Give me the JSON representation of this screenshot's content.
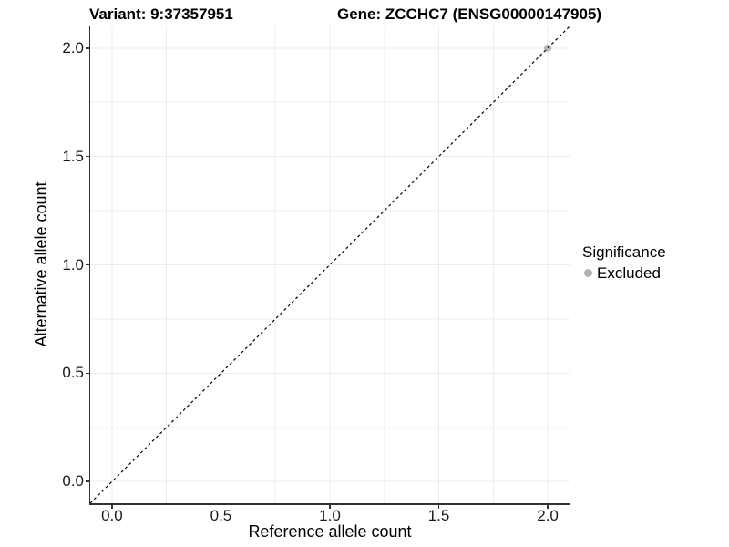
{
  "titles": {
    "variant": "Variant: 9:37357951",
    "gene": "Gene: ZCCHC7 (ENSG00000147905)"
  },
  "axes": {
    "x_label": "Reference allele count",
    "y_label": "Alternative allele count"
  },
  "legend": {
    "title": "Significance",
    "items": [
      {
        "label": "Excluded",
        "color": "#b3b3b3"
      }
    ]
  },
  "chart_data": {
    "type": "scatter",
    "title": "Variant: 9:37357951 / Gene: ZCCHC7 (ENSG00000147905)",
    "xlabel": "Reference allele count",
    "ylabel": "Alternative allele count",
    "xlim": [
      -0.1,
      2.1
    ],
    "ylim": [
      -0.1,
      2.1
    ],
    "x_ticks": {
      "values": [
        0,
        0.5,
        1,
        1.5,
        2
      ],
      "labels": [
        "0.0",
        "0.5",
        "1.0",
        "1.5",
        "2.0"
      ]
    },
    "y_ticks": {
      "values": [
        0,
        0.5,
        1,
        1.5,
        2
      ],
      "labels": [
        "0.0",
        "0.5",
        "1.0",
        "1.5",
        "2.0"
      ]
    },
    "grid": true,
    "grid_minor_step": 0.25,
    "grid_range": [
      0,
      2
    ],
    "grid_color": "#ececec",
    "axis_color": "#333333",
    "reference_line": {
      "slope": 1,
      "intercept": 0,
      "style": "dashed",
      "color": "#000000"
    },
    "series": [
      {
        "name": "Excluded",
        "color": "#b8b8b8",
        "point_radius": 4,
        "points": [
          {
            "x": 2.0,
            "y": 2.0
          }
        ]
      }
    ],
    "legend_position": "right"
  }
}
